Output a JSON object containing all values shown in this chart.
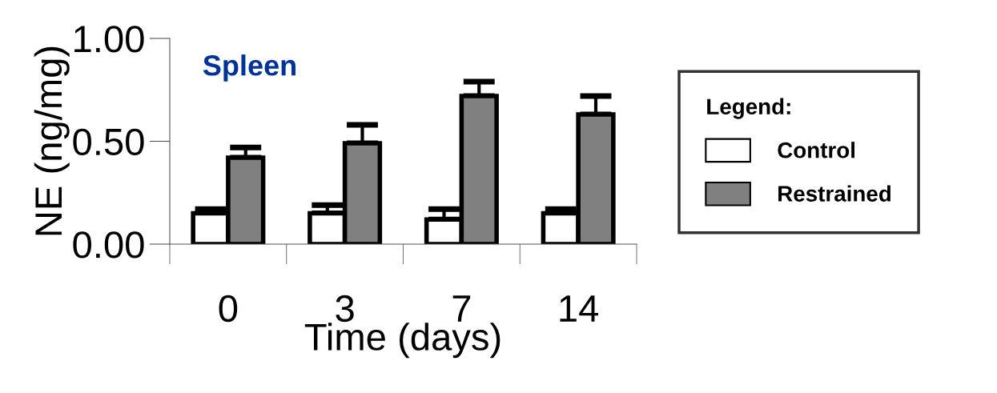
{
  "chart_data": {
    "type": "bar",
    "title": "Spleen",
    "xlabel": "Time (days)",
    "ylabel": "NE (ng/mg)",
    "legend_title": "Legend:",
    "categories": [
      "0",
      "3",
      "7",
      "14"
    ],
    "series": [
      {
        "name": "Control",
        "color": "#ffffff",
        "values": [
          0.15,
          0.15,
          0.12,
          0.15
        ],
        "errors": [
          0.02,
          0.04,
          0.05,
          0.02
        ]
      },
      {
        "name": "Restrained",
        "color": "#808080",
        "values": [
          0.42,
          0.49,
          0.72,
          0.63
        ],
        "errors": [
          0.05,
          0.09,
          0.07,
          0.09
        ]
      }
    ],
    "ylim": [
      0,
      1
    ],
    "yticks": [
      {
        "value": 0,
        "label": "0.00"
      },
      {
        "value": 0.5,
        "label": "0.50"
      },
      {
        "value": 1,
        "label": "1.00"
      }
    ],
    "grid": false,
    "legend": "right"
  }
}
